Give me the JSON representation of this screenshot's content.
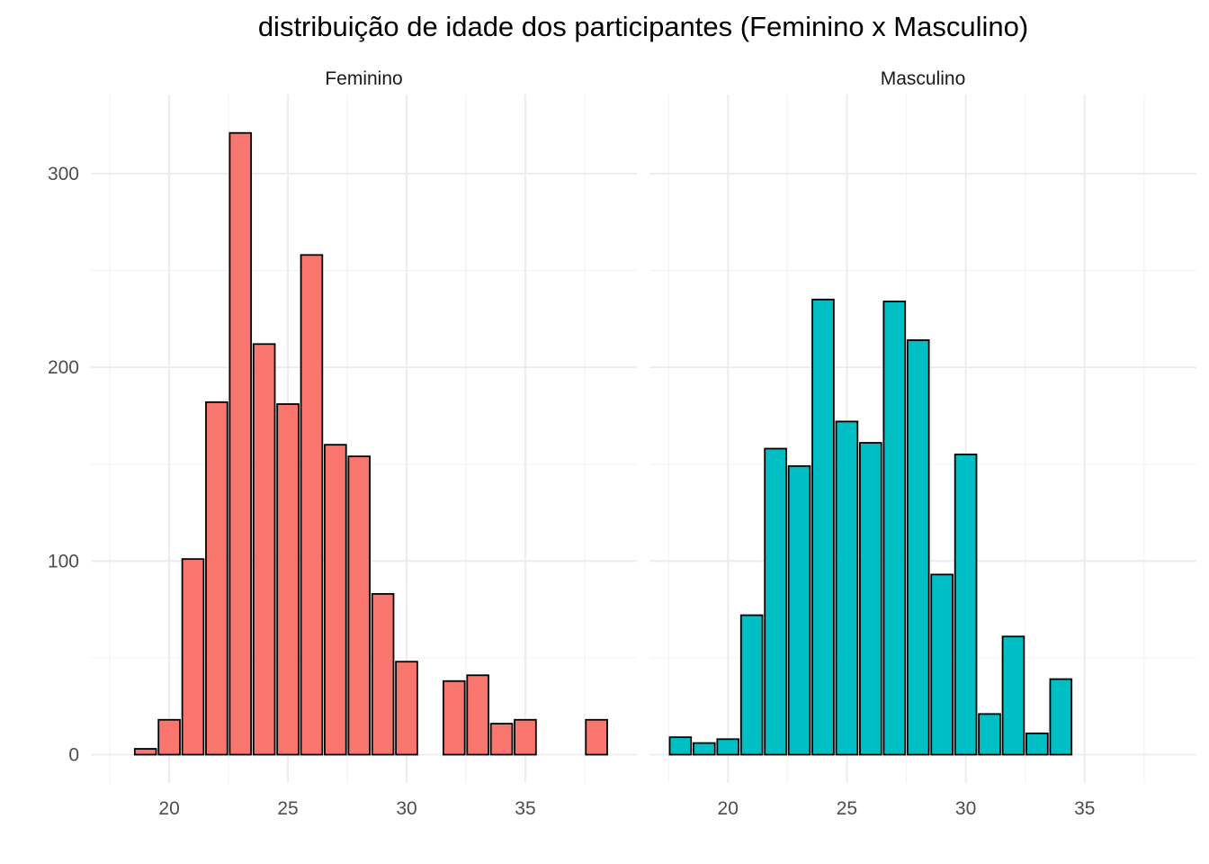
{
  "chart_data": {
    "type": "bar",
    "title": "distribuição de idade dos participantes (Feminino x Masculino)",
    "xlabel": "",
    "ylabel": "",
    "xlim": [
      16.7,
      39.7
    ],
    "ylim": [
      0,
      323
    ],
    "x_ticks": [
      20,
      25,
      30,
      35
    ],
    "y_ticks": [
      0,
      100,
      200,
      300
    ],
    "grid": true,
    "legend": "none",
    "bin_width": 1,
    "panels": [
      {
        "name": "Feminino",
        "color": "#F8766D",
        "x": [
          19,
          20,
          21,
          22,
          23,
          24,
          25,
          26,
          27,
          28,
          29,
          30,
          32,
          33,
          34,
          35,
          38
        ],
        "values": [
          3,
          18,
          101,
          182,
          321,
          212,
          181,
          258,
          160,
          154,
          83,
          48,
          38,
          41,
          16,
          18,
          18
        ]
      },
      {
        "name": "Masculino",
        "color": "#00BFC4",
        "x": [
          18,
          19,
          20,
          21,
          22,
          23,
          24,
          25,
          26,
          27,
          28,
          29,
          30,
          31,
          32,
          33,
          34
        ],
        "values": [
          9,
          6,
          8,
          72,
          158,
          149,
          235,
          172,
          161,
          234,
          214,
          93,
          155,
          21,
          61,
          11,
          39
        ]
      }
    ]
  }
}
